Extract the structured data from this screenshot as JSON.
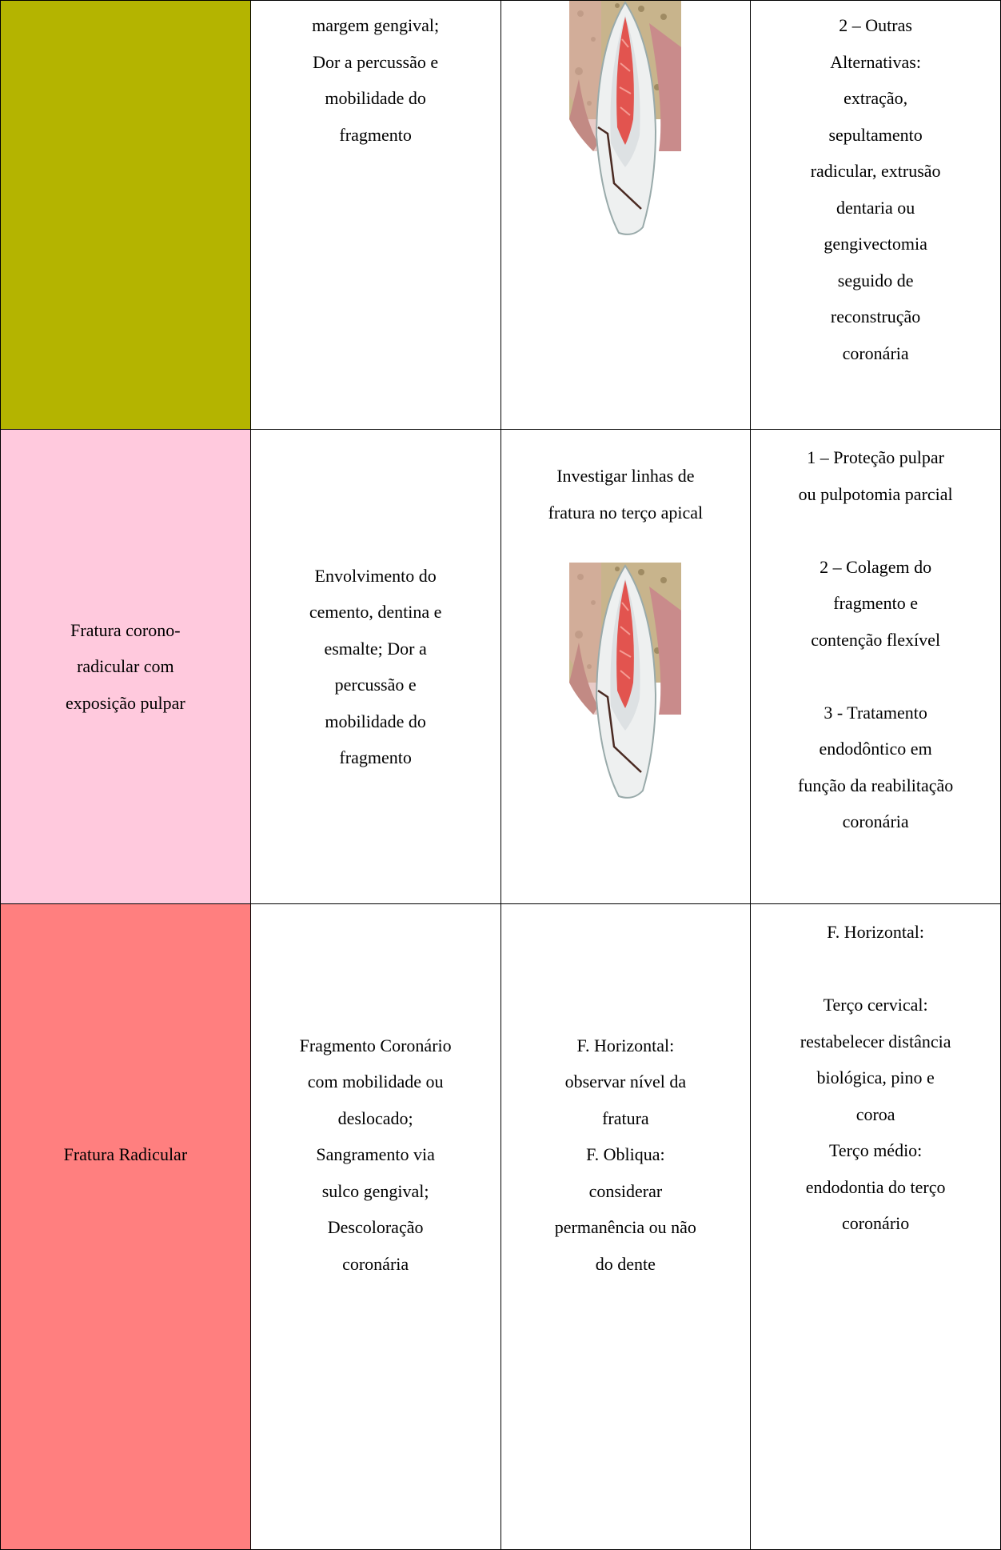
{
  "table": {
    "rows": [
      [
        [],
        [
          [
            "margem gengival;",
            "Dor a percussão e",
            "mobilidade do",
            "fragmento"
          ]
        ],
        [],
        [
          [
            "2 – Outras",
            "Alternativas:",
            "extração,",
            "sepultamento",
            "radicular, extrusão",
            "dentaria ou",
            "gengivectomia",
            "seguido de",
            "reconstrução",
            "coronária"
          ]
        ]
      ],
      [
        [
          [
            "Fratura corono-",
            "radicular com",
            "exposição pulpar"
          ]
        ],
        [
          [
            "Envolvimento do",
            "cemento, dentina e",
            "esmalte; Dor a",
            "percussão e",
            "mobilidade do",
            "fragmento"
          ]
        ],
        [
          [
            "Investigar linhas de",
            "fratura no terço apical"
          ]
        ],
        [
          [
            "1 – Proteção pulpar",
            "ou pulpotomia parcial"
          ],
          [
            "2 – Colagem do",
            "fragmento e",
            "contenção flexível"
          ],
          [
            "3 - Tratamento",
            "endodôntico em",
            "função da reabilitação",
            "coronária"
          ]
        ]
      ],
      [
        [
          [
            "Fratura Radicular"
          ]
        ],
        [
          [
            "Fragmento Coronário",
            "com mobilidade ou",
            "deslocado;",
            "Sangramento via",
            "sulco gengival;",
            "Descoloração",
            "coronária"
          ]
        ],
        [
          [
            "F. Horizontal:",
            "observar nível da",
            "fratura",
            "F. Obliqua:",
            "considerar",
            "permanência ou não",
            "do dente"
          ]
        ],
        [
          [
            "F. Horizontal:"
          ],
          [
            "Terço cervical:",
            "restabelecer distância",
            "biológica, pino e",
            "coroa",
            "Terço médio:",
            "endodontia do terço",
            "coronário"
          ]
        ]
      ]
    ]
  }
}
